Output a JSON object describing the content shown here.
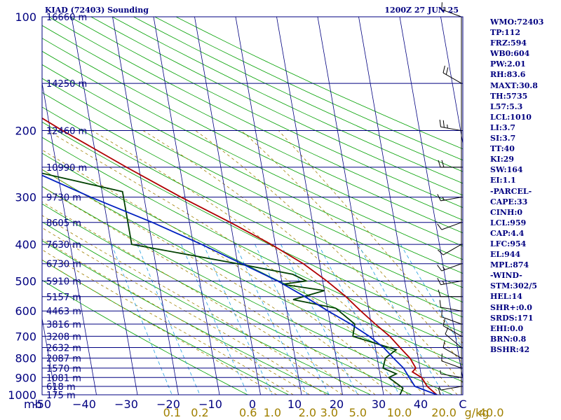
{
  "chart_data": {
    "type": "line",
    "title_left": "KIAD (72403) Sounding",
    "title_right": "1200Z 27 JUN 25",
    "pressure_unit": "mb",
    "mixing_unit": "g/kg",
    "pressure_levels": [
      100,
      200,
      300,
      400,
      500,
      600,
      700,
      800,
      900,
      1000
    ],
    "temp_ticks": [
      "-50",
      "−40",
      "−30",
      "−20",
      "−10",
      "0",
      "10",
      "20",
      "30",
      "40",
      "C"
    ],
    "mixing_ratio_ticks": [
      {
        "label": "0.1",
        "value": 0.1
      },
      {
        "label": "0.2",
        "value": 0.2
      },
      {
        "label": "0.6",
        "value": 0.6
      },
      {
        "label": "1.0",
        "value": 1.0
      },
      {
        "label": "2.0",
        "value": 2.0
      },
      {
        "label": "3.0",
        "value": 3.0
      },
      {
        "label": "5.0",
        "value": 5.0
      },
      {
        "label": "10.0",
        "value": 10.0
      },
      {
        "label": "20.0",
        "value": 20.0
      },
      {
        "label": "40.0",
        "value": 40.0
      }
    ],
    "height_labels": [
      {
        "p": 100,
        "label": "16660 m"
      },
      {
        "p": 150,
        "label": "14250 m"
      },
      {
        "p": 200,
        "label": "12460 m"
      },
      {
        "p": 250,
        "label": "10990 m"
      },
      {
        "p": 300,
        "label": "9730 m"
      },
      {
        "p": 350,
        "label": "8605 m"
      },
      {
        "p": 400,
        "label": "7630 m"
      },
      {
        "p": 450,
        "label": "6730 m"
      },
      {
        "p": 500,
        "label": "5910 m"
      },
      {
        "p": 550,
        "label": "5157 m"
      },
      {
        "p": 600,
        "label": "4463 m"
      },
      {
        "p": 650,
        "label": "3816 m"
      },
      {
        "p": 700,
        "label": "3208 m"
      },
      {
        "p": 750,
        "label": "2632 m"
      },
      {
        "p": 800,
        "label": "2087 m"
      },
      {
        "p": 850,
        "label": "1570 m"
      },
      {
        "p": 900,
        "label": "1081 m"
      },
      {
        "p": 950,
        "label": "618 m"
      },
      {
        "p": 1000,
        "label": "175 m"
      }
    ],
    "series": [
      {
        "color": "#b00000",
        "points": [
          {
            "p": 100,
            "t": -64
          },
          {
            "p": 115,
            "t": -71
          },
          {
            "p": 130,
            "t": -74
          },
          {
            "p": 150,
            "t": -74
          },
          {
            "p": 200,
            "t": -57
          },
          {
            "p": 250,
            "t": -43
          },
          {
            "p": 300,
            "t": -31
          },
          {
            "p": 350,
            "t": -20
          },
          {
            "p": 400,
            "t": -11
          },
          {
            "p": 450,
            "t": -4
          },
          {
            "p": 500,
            "t": 1
          },
          {
            "p": 550,
            "t": 5
          },
          {
            "p": 600,
            "t": 8
          },
          {
            "p": 650,
            "t": 11
          },
          {
            "p": 700,
            "t": 14
          },
          {
            "p": 750,
            "t": 16
          },
          {
            "p": 800,
            "t": 18
          },
          {
            "p": 850,
            "t": 19
          },
          {
            "p": 870,
            "t": 18
          },
          {
            "p": 900,
            "t": 20
          },
          {
            "p": 950,
            "t": 21
          },
          {
            "p": 1000,
            "t": 23
          }
        ]
      },
      {
        "color": "#004000",
        "points": [
          {
            "p": 100,
            "t": -91
          },
          {
            "p": 120,
            "t": -93
          },
          {
            "p": 150,
            "t": -97
          },
          {
            "p": 200,
            "t": -98
          },
          {
            "p": 250,
            "t": -70
          },
          {
            "p": 290,
            "t": -45
          },
          {
            "p": 330,
            "t": -45
          },
          {
            "p": 400,
            "t": -45
          },
          {
            "p": 450,
            "t": -20
          },
          {
            "p": 480,
            "t": -7
          },
          {
            "p": 500,
            "t": -4
          },
          {
            "p": 510,
            "t": -10
          },
          {
            "p": 530,
            "t": 0
          },
          {
            "p": 560,
            "t": -8
          },
          {
            "p": 590,
            "t": 2
          },
          {
            "p": 650,
            "t": 6
          },
          {
            "p": 700,
            "t": 5
          },
          {
            "p": 760,
            "t": 15
          },
          {
            "p": 800,
            "t": 12
          },
          {
            "p": 850,
            "t": 11
          },
          {
            "p": 880,
            "t": 14
          },
          {
            "p": 900,
            "t": 12
          },
          {
            "p": 960,
            "t": 15
          },
          {
            "p": 1000,
            "t": 14
          }
        ]
      },
      {
        "color": "#0020c0",
        "points": [
          {
            "p": 120,
            "t": -102
          },
          {
            "p": 150,
            "t": -92
          },
          {
            "p": 200,
            "t": -81
          },
          {
            "p": 250,
            "t": -68
          },
          {
            "p": 300,
            "t": -53
          },
          {
            "p": 350,
            "t": -39
          },
          {
            "p": 400,
            "t": -28
          },
          {
            "p": 450,
            "t": -19
          },
          {
            "p": 500,
            "t": -11
          },
          {
            "p": 550,
            "t": -5
          },
          {
            "p": 600,
            "t": 0
          },
          {
            "p": 650,
            "t": 5
          },
          {
            "p": 700,
            "t": 9
          },
          {
            "p": 750,
            "t": 12
          },
          {
            "p": 800,
            "t": 14
          },
          {
            "p": 850,
            "t": 16
          },
          {
            "p": 900,
            "t": 17
          },
          {
            "p": 950,
            "t": 18
          },
          {
            "p": 1000,
            "t": 23
          }
        ]
      }
    ],
    "wind_barbs": [
      {
        "p": 100,
        "dir": 290,
        "kt": 15
      },
      {
        "p": 150,
        "dir": 300,
        "kt": 20
      },
      {
        "p": 200,
        "dir": 280,
        "kt": 25
      },
      {
        "p": 250,
        "dir": 270,
        "kt": 20
      },
      {
        "p": 300,
        "dir": 260,
        "kt": 15
      },
      {
        "p": 350,
        "dir": 250,
        "kt": 10
      },
      {
        "p": 400,
        "dir": 240,
        "kt": 10
      },
      {
        "p": 450,
        "dir": 250,
        "kt": 15
      },
      {
        "p": 500,
        "dir": 260,
        "kt": 15
      },
      {
        "p": 550,
        "dir": 270,
        "kt": 10
      },
      {
        "p": 600,
        "dir": 280,
        "kt": 10
      },
      {
        "p": 650,
        "dir": 290,
        "kt": 10
      },
      {
        "p": 700,
        "dir": 300,
        "kt": 10
      },
      {
        "p": 750,
        "dir": 310,
        "kt": 10
      },
      {
        "p": 800,
        "dir": 300,
        "kt": 10
      },
      {
        "p": 850,
        "dir": 290,
        "kt": 10
      },
      {
        "p": 900,
        "dir": 280,
        "kt": 5
      },
      {
        "p": 950,
        "dir": 260,
        "kt": 5
      },
      {
        "p": 1000,
        "dir": 270,
        "kt": 10
      }
    ],
    "grid": true
  },
  "indices": [
    "WMO:72403",
    "TP:112",
    "FRZ:594",
    "WB0:604",
    "PW:2.01",
    "RH:83.6",
    "MAXT:30.8",
    "TH:5735",
    "L57:5.3",
    "LCL:1010",
    "LI:3.7",
    "SI:3.7",
    "TT:40",
    "KI:29",
    "SW:164",
    "EI:1.1",
    "-PARCEL-",
    "CAPE:33",
    "CINH:0",
    "LCL:959",
    "CAP:4.4",
    "LFC:954",
    "EL:944",
    "MPL:874",
    "-WIND-",
    "STM:302/5",
    "HEL:14",
    "SHR+:0.0",
    "SRDS:171",
    "EHI:0.0",
    "BRN:0.8",
    "BSHR:42"
  ]
}
